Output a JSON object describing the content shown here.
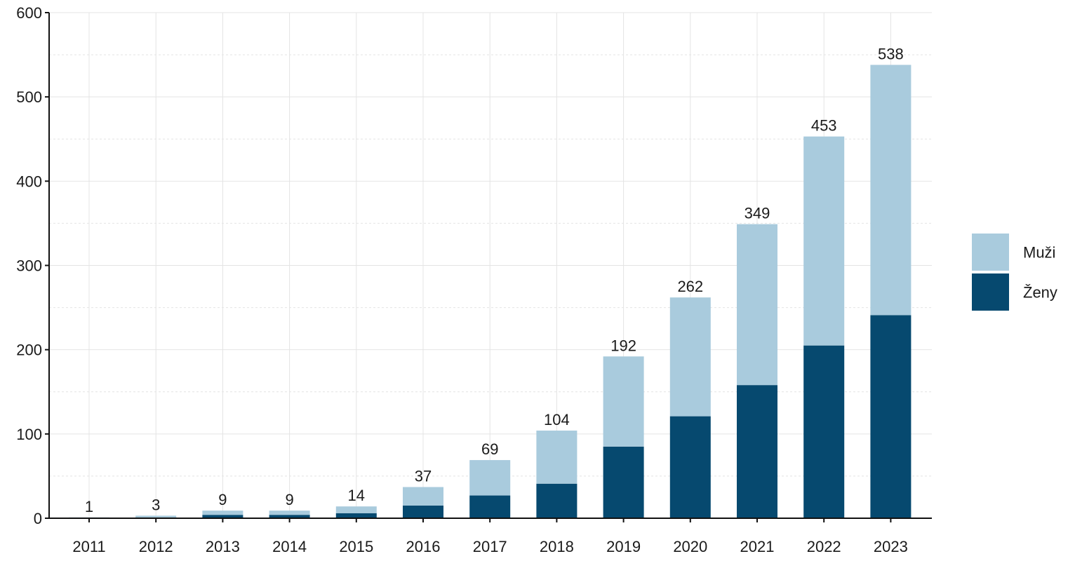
{
  "chart_data": {
    "type": "bar",
    "stacked": true,
    "title": "",
    "xlabel": "",
    "ylabel": "",
    "categories": [
      "2011",
      "2012",
      "2013",
      "2014",
      "2015",
      "2016",
      "2017",
      "2018",
      "2019",
      "2020",
      "2021",
      "2022",
      "2023"
    ],
    "totals": [
      1,
      3,
      9,
      9,
      14,
      37,
      69,
      104,
      192,
      262,
      349,
      453,
      538
    ],
    "series": [
      {
        "name": "Ženy",
        "color": "#06496f",
        "values": [
          0,
          1,
          4,
          4,
          6,
          15,
          27,
          41,
          85,
          121,
          158,
          205,
          241
        ]
      },
      {
        "name": "Muži",
        "color": "#a9cbdd",
        "values": [
          1,
          2,
          5,
          5,
          8,
          22,
          42,
          63,
          107,
          141,
          191,
          248,
          297
        ]
      }
    ],
    "ylim": [
      0,
      600
    ],
    "yticks": [
      0,
      100,
      200,
      300,
      400,
      500,
      600
    ],
    "grid": true,
    "legend_position": "right",
    "legend_order": [
      "Muži",
      "Ženy"
    ]
  }
}
